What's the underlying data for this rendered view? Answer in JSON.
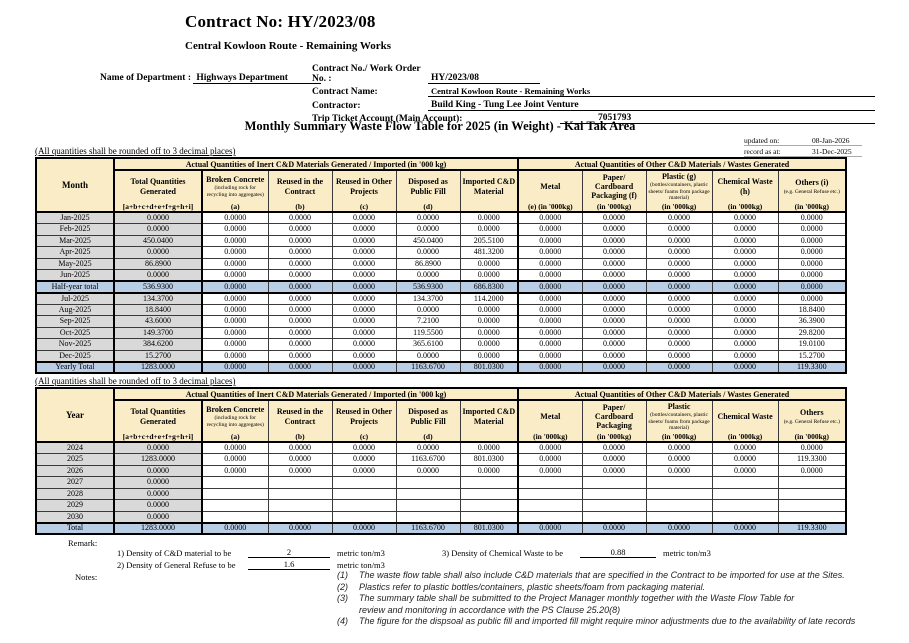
{
  "colors": {
    "header_bg": "#F9ECC6",
    "shaded_bg": "#D9D9D9",
    "total_bg": "#B9CDE4"
  },
  "page": {
    "title": "Contract No: HY/2023/08",
    "subtitle": "Central Kowloon Route - Remaining Works",
    "main_title": "Monthly Summary Waste Flow Table for 2025 (in Weight) - Kai Tak Area"
  },
  "form": {
    "dept_label": "Name of Department :",
    "dept_value": "Highways Department",
    "contract_no_label": "Contract No./ Work Order No. :",
    "contract_no_value": "HY/2023/08",
    "contract_name_label": "Contract Name:",
    "contract_name_value": "Central Kowloon Route - Remaining Works",
    "contractor_label": "Contractor:",
    "contractor_value": "Build King - Tung Lee Joint Venture",
    "trip_label": "Trip Ticket Account (Main Account):",
    "trip_value": "7051793"
  },
  "meta": {
    "updated_label": "updated on:",
    "updated_value": "08-Jan-2026",
    "record_label": "record as at:",
    "record_value": "31-Dec-2025"
  },
  "table1": {
    "note": "(All quantities shall be rounded off to 3 decimal places)",
    "row_header_label": "Month",
    "group1_header": "Actual Quantities of Inert C&D Materials Generated / Imported (in '000 kg)",
    "group2_header": "Actual Quantities of Other C&D Materials / Wastes Generated",
    "columns": [
      {
        "title": "Total Quantities Generated",
        "sub": "[a+b+c+d+e+f+g+h+i]"
      },
      {
        "title": "Broken Concrete",
        "desc": "(including rock for recycling into aggregates)",
        "sub": "(a)"
      },
      {
        "title": "Reused in the Contract",
        "sub": "(b)"
      },
      {
        "title": "Reused in Other Projects",
        "sub": "(c)"
      },
      {
        "title": "Disposed as Public Fill",
        "sub": "(d)"
      },
      {
        "title": "Imported C&D Material",
        "sub": ""
      },
      {
        "title": "Metal",
        "sub": "(e)  (in '000kg)"
      },
      {
        "title": "Paper/ Cardboard Packaging  (f)",
        "sub": "(in '000kg)"
      },
      {
        "title": "Plastic  (g)",
        "desc": "(bottles/containers, plastic sheets/ foams from package material)",
        "sub": "(in '000kg)"
      },
      {
        "title": "Chemical Waste (h)",
        "sub": "(in '000kg)"
      },
      {
        "title": "Others (i)",
        "desc": "(e.g. General Refuse etc.)",
        "sub": "(in '000kg)"
      }
    ],
    "rows": [
      {
        "label": "Jan-2025",
        "values": [
          "0.0000",
          "0.0000",
          "0.0000",
          "0.0000",
          "0.0000",
          "0.0000",
          "0.0000",
          "0.0000",
          "0.0000",
          "0.0000",
          "0.0000"
        ]
      },
      {
        "label": "Feb-2025",
        "values": [
          "0.0000",
          "0.0000",
          "0.0000",
          "0.0000",
          "0.0000",
          "0.0000",
          "0.0000",
          "0.0000",
          "0.0000",
          "0.0000",
          "0.0000"
        ]
      },
      {
        "label": "Mar-2025",
        "values": [
          "450.0400",
          "0.0000",
          "0.0000",
          "0.0000",
          "450.0400",
          "205.5100",
          "0.0000",
          "0.0000",
          "0.0000",
          "0.0000",
          "0.0000"
        ]
      },
      {
        "label": "Apr-2025",
        "values": [
          "0.0000",
          "0.0000",
          "0.0000",
          "0.0000",
          "0.0000",
          "481.3200",
          "0.0000",
          "0.0000",
          "0.0000",
          "0.0000",
          "0.0000"
        ]
      },
      {
        "label": "May-2025",
        "values": [
          "86.8900",
          "0.0000",
          "0.0000",
          "0.0000",
          "86.8900",
          "0.0000",
          "0.0000",
          "0.0000",
          "0.0000",
          "0.0000",
          "0.0000"
        ]
      },
      {
        "label": "Jun-2025",
        "values": [
          "0.0000",
          "0.0000",
          "0.0000",
          "0.0000",
          "0.0000",
          "0.0000",
          "0.0000",
          "0.0000",
          "0.0000",
          "0.0000",
          "0.0000"
        ]
      },
      {
        "label": "Half-year total",
        "total": true,
        "values": [
          "536.9300",
          "0.0000",
          "0.0000",
          "0.0000",
          "536.9300",
          "686.8300",
          "0.0000",
          "0.0000",
          "0.0000",
          "0.0000",
          "0.0000"
        ]
      },
      {
        "label": "Jul-2025",
        "values": [
          "134.3700",
          "0.0000",
          "0.0000",
          "0.0000",
          "134.3700",
          "114.2000",
          "0.0000",
          "0.0000",
          "0.0000",
          "0.0000",
          "0.0000"
        ]
      },
      {
        "label": "Aug-2025",
        "values": [
          "18.8400",
          "0.0000",
          "0.0000",
          "0.0000",
          "0.0000",
          "0.0000",
          "0.0000",
          "0.0000",
          "0.0000",
          "0.0000",
          "18.8400"
        ]
      },
      {
        "label": "Sep-2025",
        "values": [
          "43.6000",
          "0.0000",
          "0.0000",
          "0.0000",
          "7.2100",
          "0.0000",
          "0.0000",
          "0.0000",
          "0.0000",
          "0.0000",
          "36.3900"
        ]
      },
      {
        "label": "Oct-2025",
        "values": [
          "149.3700",
          "0.0000",
          "0.0000",
          "0.0000",
          "119.5500",
          "0.0000",
          "0.0000",
          "0.0000",
          "0.0000",
          "0.0000",
          "29.8200"
        ]
      },
      {
        "label": "Nov-2025",
        "values": [
          "384.6200",
          "0.0000",
          "0.0000",
          "0.0000",
          "365.6100",
          "0.0000",
          "0.0000",
          "0.0000",
          "0.0000",
          "0.0000",
          "19.0100"
        ]
      },
      {
        "label": "Dec-2025",
        "values": [
          "15.2700",
          "0.0000",
          "0.0000",
          "0.0000",
          "0.0000",
          "0.0000",
          "0.0000",
          "0.0000",
          "0.0000",
          "0.0000",
          "15.2700"
        ]
      },
      {
        "label": "Yearly Total",
        "total": true,
        "values": [
          "1283.0000",
          "0.0000",
          "0.0000",
          "0.0000",
          "1163.6700",
          "801.0300",
          "0.0000",
          "0.0000",
          "0.0000",
          "0.0000",
          "119.3300"
        ]
      }
    ]
  },
  "table2": {
    "note": "(All quantities shall be rounded off to 3 decimal places)",
    "row_header_label": "Year",
    "group1_header": "Actual Quantities of Inert C&D Materials Generated / Imported (in '000 kg)",
    "group2_header": "Actual Quantities of Other C&D Materials / Wastes Generated",
    "columns": [
      {
        "title": "Total Quantities Generated",
        "sub": "[a+b+c+d+e+f+g+h+i]"
      },
      {
        "title": "Broken Concrete",
        "desc": "(including rock for recycling into aggregates)",
        "sub": "(a)"
      },
      {
        "title": "Reused in the Contract",
        "sub": "(b)"
      },
      {
        "title": "Reused in Other Projects",
        "sub": "(c)"
      },
      {
        "title": "Disposed as Public Fill",
        "sub": "(d)"
      },
      {
        "title": "Imported C&D Material",
        "sub": ""
      },
      {
        "title": "Metal",
        "sub": "(in '000kg)"
      },
      {
        "title": "Paper/ Cardboard Packaging",
        "sub": "(in '000kg)"
      },
      {
        "title": "Plastic",
        "desc": "(bottles/containers, plastic sheets/ foams from package material)",
        "sub": "(in '000kg)"
      },
      {
        "title": "Chemical Waste",
        "sub": "(in '000kg)"
      },
      {
        "title": "Others",
        "desc": "(e.g. General Refuse etc.)",
        "sub": "(in '000kg)"
      }
    ],
    "rows": [
      {
        "label": "2024",
        "values": [
          "0.0000",
          "0.0000",
          "0.0000",
          "0.0000",
          "0.0000",
          "0.0000",
          "0.0000",
          "0.0000",
          "0.0000",
          "0.0000",
          "0.0000"
        ]
      },
      {
        "label": "2025",
        "values": [
          "1283.0000",
          "0.0000",
          "0.0000",
          "0.0000",
          "1163.6700",
          "801.0300",
          "0.0000",
          "0.0000",
          "0.0000",
          "0.0000",
          "119.3300"
        ]
      },
      {
        "label": "2026",
        "values": [
          "0.0000",
          "0.0000",
          "0.0000",
          "0.0000",
          "0.0000",
          "0.0000",
          "0.0000",
          "0.0000",
          "0.0000",
          "0.0000",
          "0.0000"
        ]
      },
      {
        "label": "2027",
        "values": [
          "0.0000",
          "",
          "",
          "",
          "",
          "",
          "",
          "",
          "",
          "",
          ""
        ]
      },
      {
        "label": "2028",
        "values": [
          "0.0000",
          "",
          "",
          "",
          "",
          "",
          "",
          "",
          "",
          "",
          ""
        ]
      },
      {
        "label": "2029",
        "values": [
          "0.0000",
          "",
          "",
          "",
          "",
          "",
          "",
          "",
          "",
          "",
          ""
        ]
      },
      {
        "label": "2030",
        "values": [
          "0.0000",
          "",
          "",
          "",
          "",
          "",
          "",
          "",
          "",
          "",
          ""
        ]
      },
      {
        "label": "Total",
        "total": true,
        "values": [
          "1283.0000",
          "0.0000",
          "0.0000",
          "0.0000",
          "1163.6700",
          "801.0300",
          "0.0000",
          "0.0000",
          "0.0000",
          "0.0000",
          "119.3300"
        ]
      }
    ]
  },
  "remark": {
    "label": "Remark:",
    "items": [
      {
        "label": "1) Density of C&D material to be",
        "value": "2",
        "unit": "metric ton/m3"
      },
      {
        "label": "2) Density of General Refuse to be",
        "value": "1.6",
        "unit": "metric ton/m3"
      },
      {
        "label": "3) Density of Chemical Waste to be",
        "value": "0.88",
        "unit": "metric ton/m3"
      }
    ]
  },
  "notes": {
    "label": "Notes:",
    "items": [
      {
        "num": "(1)",
        "lines": [
          "The waste flow table shall also include C&D materials that are specified in the Contract to be imported for use at the Sites."
        ]
      },
      {
        "num": "(2)",
        "lines": [
          "Plastics refer to plastic bottles/containers, plastic sheets/foam from packaging material."
        ]
      },
      {
        "num": "(3)",
        "lines": [
          "The summary table shall be submitted to the Project Manager monthly together with the Waste Flow Table for",
          "review and monitoring in accordance with the PS Clause 25.20(8)"
        ]
      },
      {
        "num": "(4)",
        "lines": [
          "The figure for the dispsoal as public fill and imported fill might require minor adjustments due to the availability of late records"
        ]
      }
    ]
  }
}
